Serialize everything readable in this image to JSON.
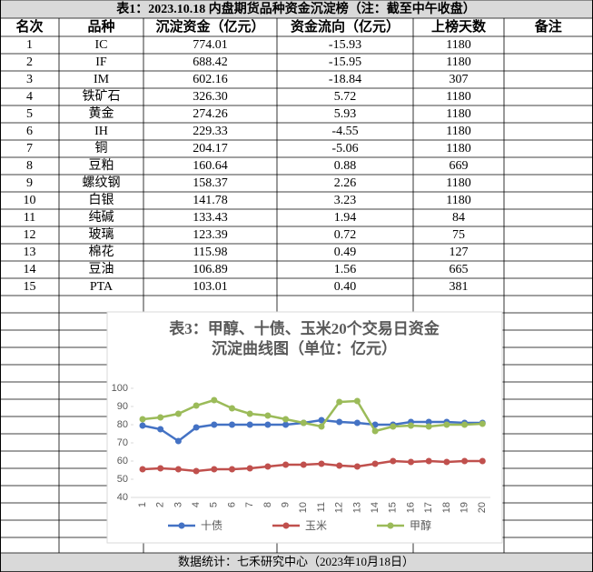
{
  "header": {
    "title": "表1：2023.10.18 内盘期货品种资金沉淀榜（注：截至中午收盘）"
  },
  "table": {
    "columns": [
      "名次",
      "品种",
      "沉淀资金（亿元）",
      "资金流向（亿元）",
      "上榜天数",
      "备注"
    ],
    "rows": [
      [
        "1",
        "IC",
        "774.01",
        "-15.93",
        "1180"
      ],
      [
        "2",
        "IF",
        "688.42",
        "-15.95",
        "1180"
      ],
      [
        "3",
        "IM",
        "602.16",
        "-18.84",
        "307"
      ],
      [
        "4",
        "铁矿石",
        "326.30",
        "5.72",
        "1180"
      ],
      [
        "5",
        "黄金",
        "274.26",
        "5.93",
        "1180"
      ],
      [
        "6",
        "IH",
        "229.33",
        "-4.55",
        "1180"
      ],
      [
        "7",
        "铜",
        "204.17",
        "-5.06",
        "1180"
      ],
      [
        "8",
        "豆粕",
        "160.64",
        "0.88",
        "669"
      ],
      [
        "9",
        "螺纹钢",
        "158.37",
        "2.26",
        "1180"
      ],
      [
        "10",
        "白银",
        "141.78",
        "3.23",
        "1180"
      ],
      [
        "11",
        "纯碱",
        "133.43",
        "1.94",
        "84"
      ],
      [
        "12",
        "玻璃",
        "123.39",
        "0.72",
        "75"
      ],
      [
        "13",
        "棉花",
        "115.98",
        "0.49",
        "127"
      ],
      [
        "14",
        "豆油",
        "106.89",
        "1.56",
        "665"
      ],
      [
        "15",
        "PTA",
        "103.01",
        "0.40",
        "381"
      ]
    ]
  },
  "chart_data": {
    "type": "line",
    "title": [
      "表3：甲醇、十债、玉米20个交易日资金",
      "沉淀曲线图（单位：亿元）"
    ],
    "categories": [
      "1",
      "2",
      "3",
      "4",
      "5",
      "6",
      "7",
      "8",
      "9",
      "10",
      "11",
      "12",
      "13",
      "14",
      "15",
      "16",
      "17",
      "18",
      "19",
      "20"
    ],
    "ylim": [
      40,
      100
    ],
    "yticks": [
      40,
      50,
      60,
      70,
      80,
      90,
      100
    ],
    "grid": false,
    "series": [
      {
        "name": "十债",
        "color": "#4472c4",
        "values": [
          79.5,
          77.5,
          71,
          78.5,
          80,
          80,
          80,
          80,
          80,
          81,
          82.5,
          81.5,
          81,
          80,
          80,
          81.5,
          81.5,
          81.5,
          81,
          81
        ]
      },
      {
        "name": "玉米",
        "color": "#c0504d",
        "values": [
          55.5,
          56,
          55.5,
          54.5,
          55.5,
          55.5,
          56,
          57,
          58,
          58,
          58.5,
          57.5,
          57,
          58.5,
          60,
          59.5,
          60,
          59.5,
          60,
          60
        ]
      },
      {
        "name": "甲醇",
        "color": "#9bbb59",
        "values": [
          83,
          84,
          86,
          90.5,
          93.5,
          89,
          86,
          85,
          83,
          81,
          79,
          92.5,
          93,
          76.5,
          79,
          79.5,
          79,
          80,
          80,
          80.5
        ]
      }
    ]
  },
  "footer": {
    "text": "数据统计：七禾研究中心（2023年10月18日）"
  }
}
